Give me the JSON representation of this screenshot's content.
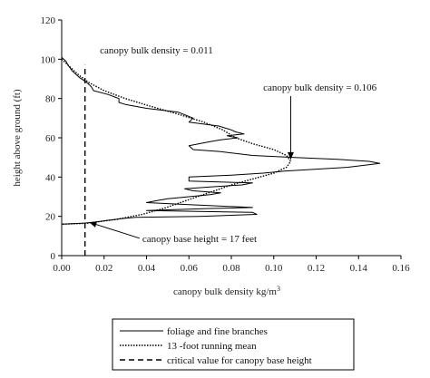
{
  "chart_data": {
    "type": "line",
    "title": "",
    "xlabel": "canopy bulk density kg/m",
    "xlabel_superscript": "3",
    "ylabel": "height above ground (ft)",
    "xlim": [
      0,
      0.16
    ],
    "ylim": [
      0,
      120
    ],
    "x_ticks": [
      0.0,
      0.02,
      0.04,
      0.06,
      0.08,
      0.1,
      0.12,
      0.14,
      0.16
    ],
    "x_tick_labels": [
      "0.00",
      "0.02",
      "0.04",
      "0.06",
      "0.08",
      "0.10",
      "0.12",
      "0.14",
      "0.16"
    ],
    "y_ticks": [
      0,
      20,
      40,
      60,
      80,
      100,
      120
    ],
    "y_tick_labels": [
      "0",
      "20",
      "40",
      "60",
      "80",
      "100",
      "120"
    ],
    "grid": false,
    "legend_position": "below-chart",
    "series": [
      {
        "name": "foliage and fine branches",
        "style": "solid",
        "color": "#000000",
        "points": [
          [
            0.0,
            101
          ],
          [
            0.002,
            99
          ],
          [
            0.003,
            97
          ],
          [
            0.005,
            94
          ],
          [
            0.008,
            91
          ],
          [
            0.012,
            88
          ],
          [
            0.014,
            86
          ],
          [
            0.015,
            84
          ],
          [
            0.022,
            82
          ],
          [
            0.027,
            80
          ],
          [
            0.027,
            78
          ],
          [
            0.03,
            77
          ],
          [
            0.04,
            75
          ],
          [
            0.055,
            73
          ],
          [
            0.062,
            70
          ],
          [
            0.06,
            68
          ],
          [
            0.074,
            66
          ],
          [
            0.08,
            64
          ],
          [
            0.082,
            63
          ],
          [
            0.086,
            62
          ],
          [
            0.078,
            61
          ],
          [
            0.083,
            60
          ],
          [
            0.075,
            59
          ],
          [
            0.07,
            58
          ],
          [
            0.06,
            56
          ],
          [
            0.062,
            54
          ],
          [
            0.075,
            53
          ],
          [
            0.082,
            52
          ],
          [
            0.09,
            51
          ],
          [
            0.11,
            50
          ],
          [
            0.13,
            49
          ],
          [
            0.145,
            48
          ],
          [
            0.15,
            47
          ],
          [
            0.135,
            45
          ],
          [
            0.105,
            43
          ],
          [
            0.095,
            42
          ],
          [
            0.08,
            41
          ],
          [
            0.06,
            40
          ],
          [
            0.06,
            38
          ],
          [
            0.09,
            37
          ],
          [
            0.085,
            36
          ],
          [
            0.07,
            35
          ],
          [
            0.058,
            34
          ],
          [
            0.062,
            33
          ],
          [
            0.075,
            32
          ],
          [
            0.07,
            31
          ],
          [
            0.06,
            30
          ],
          [
            0.05,
            29
          ],
          [
            0.045,
            28
          ],
          [
            0.04,
            27
          ],
          [
            0.06,
            26
          ],
          [
            0.09,
            24.5
          ],
          [
            0.07,
            24
          ],
          [
            0.04,
            23
          ],
          [
            0.09,
            22
          ],
          [
            0.092,
            21
          ],
          [
            0.065,
            20
          ],
          [
            0.035,
            19.5
          ],
          [
            0.03,
            19
          ],
          [
            0.022,
            18
          ],
          [
            0.015,
            17
          ],
          [
            0.01,
            16.5
          ],
          [
            0.0,
            16
          ]
        ]
      },
      {
        "name": "13 -foot running mean",
        "style": "dotted",
        "color": "#000000",
        "points": [
          [
            0.0,
            100
          ],
          [
            0.004,
            96
          ],
          [
            0.008,
            92
          ],
          [
            0.013,
            88
          ],
          [
            0.02,
            84
          ],
          [
            0.03,
            80
          ],
          [
            0.042,
            76
          ],
          [
            0.055,
            72
          ],
          [
            0.067,
            68
          ],
          [
            0.076,
            64
          ],
          [
            0.082,
            60
          ],
          [
            0.09,
            57
          ],
          [
            0.1,
            54
          ],
          [
            0.106,
            51
          ],
          [
            0.108,
            48
          ],
          [
            0.106,
            45
          ],
          [
            0.1,
            42
          ],
          [
            0.09,
            39
          ],
          [
            0.08,
            36
          ],
          [
            0.072,
            33
          ],
          [
            0.064,
            30
          ],
          [
            0.056,
            27
          ],
          [
            0.048,
            24
          ],
          [
            0.038,
            21
          ],
          [
            0.026,
            18.5
          ],
          [
            0.012,
            16.5
          ],
          [
            0.0,
            16
          ]
        ]
      },
      {
        "name": "critical value for canopy base height",
        "style": "dashed",
        "color": "#000000",
        "points": [
          [
            0.011,
            0
          ],
          [
            0.011,
            97
          ]
        ]
      }
    ],
    "annotations": [
      {
        "text": "canopy bulk density = 0.011",
        "x": 0.018,
        "y": 103,
        "arrow_to": null
      },
      {
        "text": "canopy bulk density = 0.106",
        "x": 0.095,
        "y": 84,
        "arrow_to": [
          0.108,
          49
        ]
      },
      {
        "text": "canopy base height = 17 feet",
        "x": 0.038,
        "y": 7,
        "arrow_to": [
          0.013,
          17
        ]
      }
    ]
  }
}
